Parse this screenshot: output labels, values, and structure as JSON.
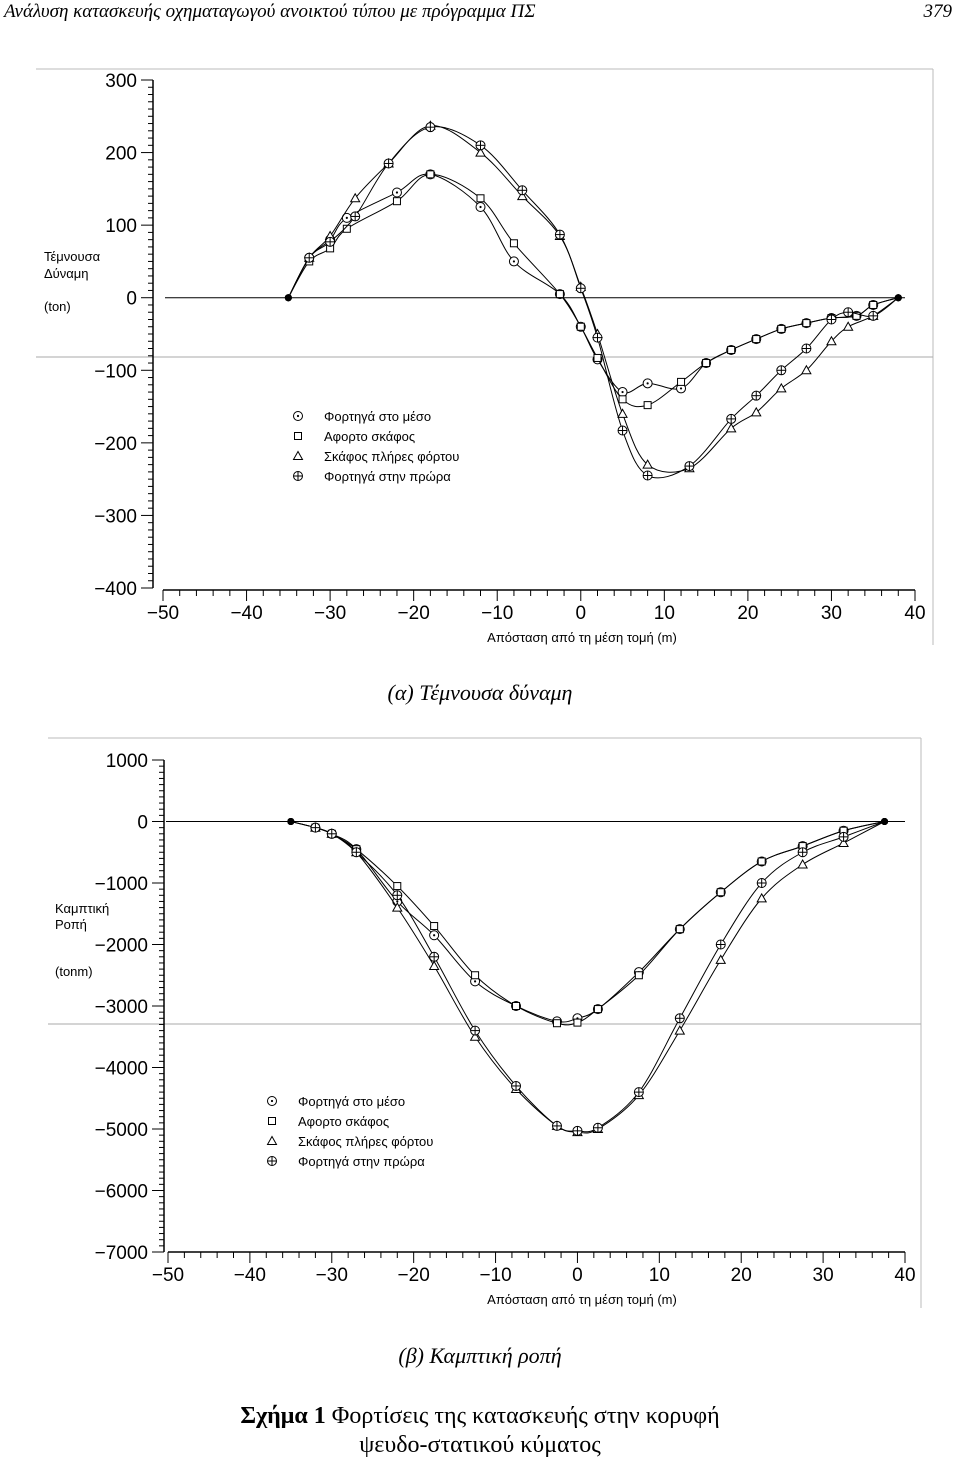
{
  "header": {
    "title": "Ανάλυση κατασκευής οχηματαγωγού ανοικτού τύπου με πρόγραμμα ΠΣ",
    "page_number": "379"
  },
  "captions": {
    "a": "(α) Τέμνουσα δύναμη",
    "b": "(β) Καμπτική ροπή",
    "figure_label": "Σχήμα 1",
    "figure_text_line1": "Φορτίσεις της κατασκευής στην κορυφή",
    "figure_text_line2": "ψευδο-στατικού κύματος"
  },
  "chart_data": [
    {
      "id": "shear",
      "type": "line",
      "title": "",
      "ylabel_lines": [
        "Τέμνουσα",
        "Δύναμη",
        "(ton)"
      ],
      "xlabel": "Απόσταση από τη μέση τομή (m)",
      "xlim": [
        -50,
        40
      ],
      "ylim": [
        -400,
        300
      ],
      "xticks": [
        -50,
        -40,
        -30,
        -20,
        -10,
        0,
        10,
        20,
        30,
        40
      ],
      "xtick_labels": [
        "−50",
        "−40",
        "−30",
        "−20",
        "−10",
        "0",
        "10",
        "20",
        "30",
        "40"
      ],
      "yticks": [
        300,
        200,
        100,
        0,
        -100,
        -200,
        -300,
        -400
      ],
      "ytick_labels": [
        "300",
        "200",
        "100",
        "0",
        "−100",
        "−200",
        "−300",
        "−400"
      ],
      "legend_position": "center-left",
      "series": [
        {
          "name": "Φορτηγά στο μέσο",
          "marker": "circle-dot",
          "x": [
            -35,
            -32.5,
            -30,
            -28,
            -22,
            -18,
            -12,
            -8,
            -2.5,
            0,
            2,
            5,
            8,
            12,
            15,
            18,
            21,
            24,
            27,
            30,
            33,
            35,
            38
          ],
          "y": [
            0,
            55,
            80,
            110,
            145,
            170,
            125,
            50,
            5,
            -40,
            -85,
            -130,
            -118,
            -125,
            -90,
            -72,
            -57,
            -43,
            -35,
            -28,
            -25,
            -10,
            0
          ]
        },
        {
          "name": "Αφορτο σκάφος",
          "marker": "square",
          "x": [
            -35,
            -32.5,
            -30,
            -28,
            -22,
            -18,
            -12,
            -8,
            -2.5,
            0,
            2,
            5,
            8,
            12,
            15,
            18,
            21,
            24,
            27,
            30,
            33,
            35,
            38
          ],
          "y": [
            0,
            50,
            68,
            95,
            133,
            170,
            137,
            75,
            5,
            -40,
            -83,
            -140,
            -148,
            -116,
            -90,
            -72,
            -57,
            -43,
            -35,
            -28,
            -25,
            -10,
            0
          ]
        },
        {
          "name": "Σκάφος πλήρες φόρτου",
          "marker": "triangle",
          "x": [
            -35,
            -32.5,
            -30,
            -27,
            -23,
            -18,
            -12,
            -7,
            -2.5,
            0,
            2,
            5,
            8,
            13,
            18,
            21,
            24,
            27,
            30,
            32,
            35,
            38
          ],
          "y": [
            0,
            55,
            85,
            137,
            185,
            237,
            200,
            140,
            85,
            15,
            -50,
            -160,
            -230,
            -235,
            -180,
            -158,
            -125,
            -100,
            -60,
            -40,
            -25,
            0
          ]
        },
        {
          "name": "Φορτηγά στην πρώρα",
          "marker": "circle-plus",
          "x": [
            -35,
            -32.5,
            -30,
            -27,
            -23,
            -18,
            -12,
            -7,
            -2.5,
            0,
            2,
            5,
            8,
            13,
            18,
            21,
            24,
            27,
            30,
            32,
            35,
            38
          ],
          "y": [
            0,
            55,
            77,
            112,
            185,
            235,
            210,
            148,
            87,
            13,
            -55,
            -183,
            -245,
            -232,
            -167,
            -135,
            -100,
            -70,
            -30,
            -20,
            -25,
            0
          ]
        }
      ]
    },
    {
      "id": "moment",
      "type": "line",
      "title": "",
      "ylabel_lines": [
        "Καμπτική",
        "Ροπή",
        "(tonm)"
      ],
      "xlabel": "Απόσταση από τη μέση τομή (m)",
      "xlim": [
        -50,
        40
      ],
      "ylim": [
        -7000,
        1000
      ],
      "xticks": [
        -50,
        -40,
        -30,
        -20,
        -10,
        0,
        10,
        20,
        30,
        40
      ],
      "xtick_labels": [
        "−50",
        "−40",
        "−30",
        "−20",
        "−10",
        "0",
        "10",
        "20",
        "30",
        "40"
      ],
      "yticks": [
        1000,
        0,
        -1000,
        -2000,
        -3000,
        -4000,
        -5000,
        -6000,
        -7000
      ],
      "ytick_labels": [
        "1000",
        "0",
        "−1000",
        "−2000",
        "−3000",
        "−4000",
        "−5000",
        "−6000",
        "−7000"
      ],
      "legend_position": "bottom-left",
      "series": [
        {
          "name": "Φορτηγά στο μέσο",
          "marker": "circle-dot",
          "x": [
            -35,
            -32,
            -30,
            -27,
            -22,
            -17.5,
            -12.5,
            -7.5,
            -2.5,
            0,
            2.5,
            7.5,
            12.5,
            17.5,
            22.5,
            27.5,
            32.5,
            37.5
          ],
          "y": [
            0,
            -100,
            -200,
            -450,
            -1300,
            -1850,
            -2600,
            -3000,
            -3250,
            -3200,
            -3050,
            -2450,
            -1750,
            -1150,
            -650,
            -400,
            -150,
            0
          ]
        },
        {
          "name": "Αφορτο σκάφος",
          "marker": "square",
          "x": [
            -35,
            -32,
            -30,
            -27,
            -22,
            -17.5,
            -12.5,
            -7.5,
            -2.5,
            0,
            2.5,
            7.5,
            12.5,
            17.5,
            22.5,
            27.5,
            32.5,
            37.5
          ],
          "y": [
            0,
            -100,
            -200,
            -450,
            -1050,
            -1700,
            -2500,
            -3000,
            -3280,
            -3270,
            -3050,
            -2500,
            -1750,
            -1150,
            -650,
            -400,
            -150,
            0
          ]
        },
        {
          "name": "Σκάφος πλήρες φόρτου",
          "marker": "triangle",
          "x": [
            -35,
            -32,
            -30,
            -27,
            -22,
            -17.5,
            -12.5,
            -7.5,
            -2.5,
            0,
            2.5,
            7.5,
            12.5,
            17.5,
            22.5,
            27.5,
            32.5,
            37.5
          ],
          "y": [
            0,
            -100,
            -200,
            -500,
            -1400,
            -2350,
            -3500,
            -4350,
            -4950,
            -5050,
            -5000,
            -4450,
            -3400,
            -2250,
            -1250,
            -700,
            -350,
            0
          ]
        },
        {
          "name": "Φορτηγά στην πρώρα",
          "marker": "circle-plus",
          "x": [
            -35,
            -32,
            -30,
            -27,
            -22,
            -17.5,
            -12.5,
            -7.5,
            -2.5,
            0,
            2.5,
            7.5,
            12.5,
            17.5,
            22.5,
            27.5,
            32.5,
            37.5
          ],
          "y": [
            0,
            -100,
            -200,
            -500,
            -1200,
            -2200,
            -3400,
            -4300,
            -4950,
            -5030,
            -4980,
            -4400,
            -3200,
            -2000,
            -1000,
            -500,
            -250,
            0
          ]
        }
      ]
    }
  ]
}
